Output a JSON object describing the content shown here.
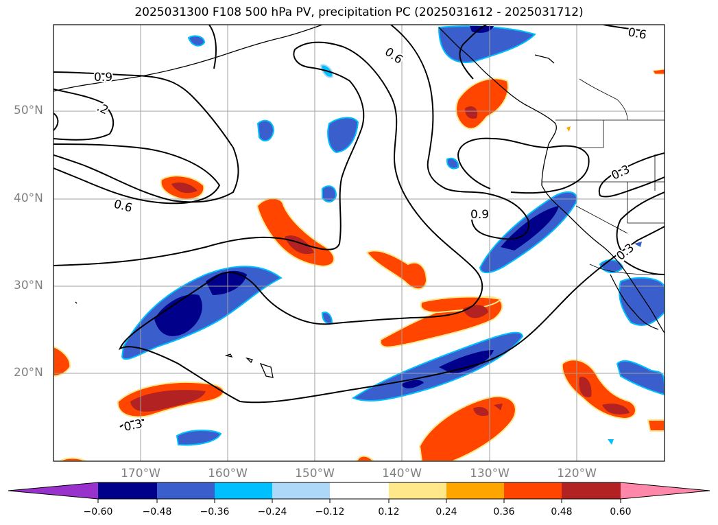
{
  "title": "2025031300 F108 500 hPa PV, precipitation PC (2025031612 - 2025031712)",
  "lat_labels": [
    "50°N",
    "40°N",
    "30°N",
    "20°N"
  ],
  "lon_labels": [
    "170°W",
    "160°W",
    "150°W",
    "140°W",
    "130°W",
    "120°W"
  ],
  "contour_labels": [
    "0.9",
    ".2",
    "0.6",
    "0.6",
    "0.6",
    "0.9",
    "0.3",
    "0.3",
    "0.3"
  ],
  "colorbar": {
    "ticks": [
      "−0.60",
      "−0.48",
      "−0.36",
      "−0.24",
      "−0.12",
      "0.12",
      "0.24",
      "0.36",
      "0.48",
      "0.60"
    ],
    "colors": [
      "#9932CC",
      "#00008B",
      "#3A5FCD",
      "#00BFFF",
      "#ADD8F7",
      "#FFFFFF",
      "#FFE88A",
      "#FFA500",
      "#FF4500",
      "#B22222",
      "#FF88AA"
    ]
  }
}
